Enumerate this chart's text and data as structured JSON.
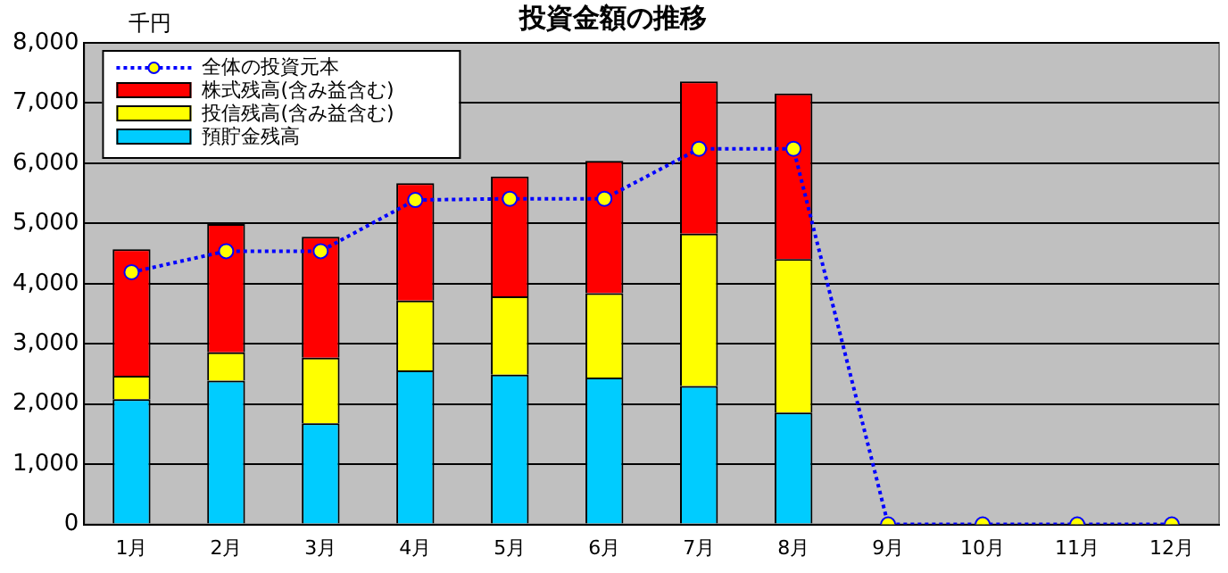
{
  "chart_data": {
    "type": "bar",
    "title": "投資金額の推移",
    "ylabel": "千円",
    "stacked": true,
    "categories": [
      "1月",
      "2月",
      "3月",
      "4月",
      "5月",
      "6月",
      "7月",
      "8月",
      "9月",
      "10月",
      "11月",
      "12月"
    ],
    "series": [
      {
        "name": "預貯金残高",
        "color": "#00ccff",
        "values": [
          2080,
          2390,
          1680,
          2560,
          2490,
          2440,
          2300,
          1860,
          null,
          null,
          null,
          null
        ]
      },
      {
        "name": "投信残高(含み益含む)",
        "color": "#ffff00",
        "values": [
          390,
          470,
          1090,
          1160,
          1300,
          1400,
          2530,
          2550,
          null,
          null,
          null,
          null
        ]
      },
      {
        "name": "株式残高(含み益含む)",
        "color": "#ff0000",
        "values": [
          2100,
          2130,
          2010,
          1950,
          1990,
          2200,
          2530,
          2750,
          null,
          null,
          null,
          null
        ]
      },
      {
        "name": "全体の投資元本",
        "type": "line",
        "color": "#0000ff",
        "marker": "circle",
        "line_style": "dotted",
        "values": [
          4190,
          4540,
          4540,
          5390,
          5410,
          5410,
          6240,
          6240,
          0,
          0,
          0,
          0
        ]
      }
    ],
    "ylim": [
      0,
      8000
    ],
    "yticks": [
      0,
      {
        "value": 1000,
        "label": "1,000"
      },
      {
        "value": 2000,
        "label": "2,000"
      },
      {
        "value": 3000,
        "label": "3,000"
      },
      {
        "value": 4000,
        "label": "4,000"
      },
      {
        "value": 5000,
        "label": "5,000"
      },
      {
        "value": 6000,
        "label": "6,000"
      },
      {
        "value": 7000,
        "label": "7,000"
      },
      {
        "value": 8000,
        "label": "8,000"
      }
    ],
    "grid": "y",
    "legend": "top left"
  }
}
